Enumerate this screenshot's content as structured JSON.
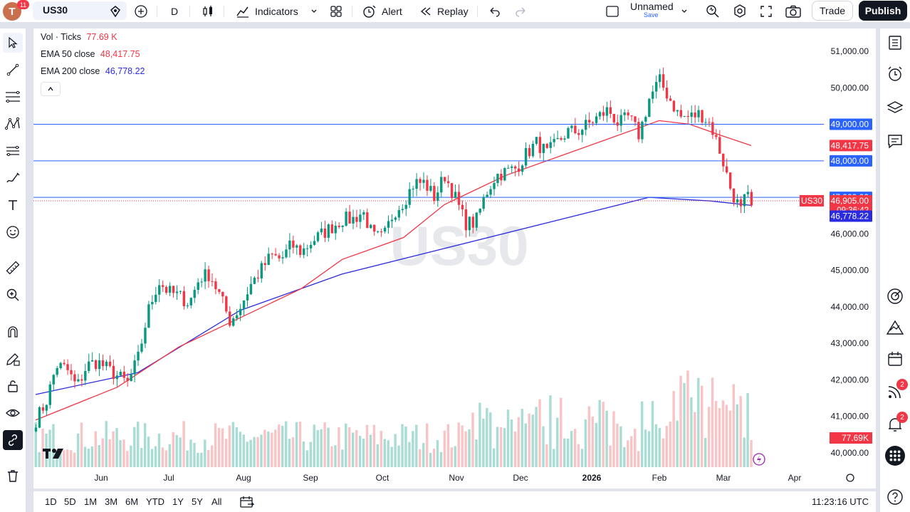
{
  "topbar": {
    "avatar_letter": "T",
    "avatar_badge": "11",
    "symbol": "US30",
    "interval": "D",
    "indicators_label": "Indicators",
    "alert_label": "Alert",
    "replay_label": "Replay",
    "layout_name": "Unnamed",
    "layout_save": "Save",
    "trade_label": "Trade",
    "publish_label": "Publish"
  },
  "legend": {
    "vol_label": "Vol · Ticks",
    "vol_value": "77.69 K",
    "ema50_label": "EMA 50 close",
    "ema50_value": "48,417.75",
    "ema200_label": "EMA 200 close",
    "ema200_value": "46,778.22"
  },
  "watermark": "US30",
  "price_axis": {
    "ticks": [
      "51,000.00",
      "50,000.00",
      "49,000.00",
      "48,000.00",
      "47,000.00",
      "46,000.00",
      "45,000.00",
      "44,000.00",
      "43,000.00",
      "42,000.00",
      "41,000.00",
      "40,000.00"
    ],
    "labels": {
      "level_49000": "49,000.00",
      "ema50": "48,417.75",
      "level_48000": "48,000.00",
      "level_47000": "47,000.00",
      "last_price": "46,905.00",
      "countdown": "09:36:42",
      "ema200": "46,778.22",
      "volume": "77.69K",
      "symbol_tag": "US30"
    }
  },
  "time_axis": {
    "ticks": [
      "Jun",
      "Jul",
      "Aug",
      "Sep",
      "Oct",
      "Nov",
      "Dec",
      "2026",
      "Feb",
      "Mar",
      "Apr"
    ]
  },
  "bottombar": {
    "ranges": [
      "1D",
      "5D",
      "1M",
      "3M",
      "6M",
      "YTD",
      "1Y",
      "5Y",
      "All"
    ],
    "clock": "11:23:16 UTC"
  },
  "right_badges": {
    "streams": "2",
    "alerts": "2"
  },
  "colors": {
    "up": "#089981",
    "down": "#f23645",
    "ema50": "#f23645",
    "ema200": "#2a2ae0",
    "hline": "#2962ff",
    "vol_up": "#a8dcd4",
    "vol_down": "#f8c4c6"
  },
  "chart_data": {
    "type": "candlestick",
    "title": "US30",
    "interval": "D",
    "ylim": [
      40000,
      51500
    ],
    "horizontal_lines": [
      49000,
      48000,
      47000
    ],
    "last_price": 46905,
    "ema50_last": 48417.75,
    "ema200_last": 46778.22,
    "volume_last": "77.69K",
    "x_labels": [
      "Jun",
      "Jul",
      "Aug",
      "Sep",
      "Oct",
      "Nov",
      "Dec",
      "2026",
      "Feb",
      "Mar",
      "Apr"
    ],
    "close_path": [
      [
        0,
        40900
      ],
      [
        10,
        41400
      ],
      [
        20,
        42400
      ],
      [
        30,
        42300
      ],
      [
        40,
        41800
      ],
      [
        50,
        42400
      ],
      [
        60,
        42500
      ],
      [
        70,
        42300
      ],
      [
        80,
        42100
      ],
      [
        90,
        41900
      ],
      [
        100,
        42600
      ],
      [
        110,
        43900
      ],
      [
        120,
        44700
      ],
      [
        130,
        44400
      ],
      [
        140,
        44300
      ],
      [
        150,
        44100
      ],
      [
        160,
        44800
      ],
      [
        170,
        44900
      ],
      [
        180,
        44300
      ],
      [
        190,
        43600
      ],
      [
        200,
        44000
      ],
      [
        210,
        44600
      ],
      [
        220,
        45000
      ],
      [
        230,
        45400
      ],
      [
        240,
        45300
      ],
      [
        250,
        45700
      ],
      [
        260,
        45500
      ],
      [
        270,
        45800
      ],
      [
        280,
        46000
      ],
      [
        290,
        46200
      ],
      [
        300,
        46400
      ],
      [
        310,
        46400
      ],
      [
        320,
        46600
      ],
      [
        330,
        45900
      ],
      [
        340,
        45900
      ],
      [
        350,
        46600
      ],
      [
        360,
        46900
      ],
      [
        370,
        47400
      ],
      [
        380,
        47400
      ],
      [
        390,
        47000
      ],
      [
        400,
        47600
      ],
      [
        410,
        47000
      ],
      [
        420,
        46300
      ],
      [
        430,
        46300
      ],
      [
        440,
        47100
      ],
      [
        450,
        47600
      ],
      [
        460,
        47700
      ],
      [
        470,
        47800
      ],
      [
        480,
        48200
      ],
      [
        490,
        48500
      ],
      [
        500,
        48200
      ],
      [
        510,
        48500
      ],
      [
        520,
        48800
      ],
      [
        530,
        48800
      ],
      [
        540,
        49000
      ],
      [
        550,
        49200
      ],
      [
        560,
        49400
      ],
      [
        570,
        49000
      ],
      [
        580,
        49200
      ],
      [
        590,
        48700
      ],
      [
        600,
        49700
      ],
      [
        610,
        50200
      ],
      [
        620,
        49700
      ],
      [
        630,
        49200
      ],
      [
        640,
        49200
      ],
      [
        650,
        49300
      ],
      [
        660,
        49000
      ],
      [
        670,
        48200
      ],
      [
        680,
        47200
      ],
      [
        690,
        46600
      ],
      [
        695,
        47100
      ],
      [
        700,
        46700
      ]
    ]
  }
}
